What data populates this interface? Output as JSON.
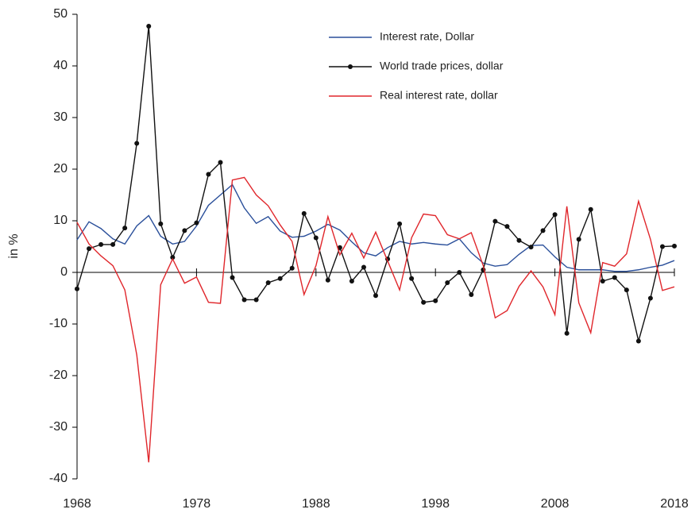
{
  "chart_data": {
    "type": "line",
    "ylabel": "in %",
    "x": [
      1968,
      1969,
      1970,
      1971,
      1972,
      1973,
      1974,
      1975,
      1976,
      1977,
      1978,
      1979,
      1980,
      1981,
      1982,
      1983,
      1984,
      1985,
      1986,
      1987,
      1988,
      1989,
      1990,
      1991,
      1992,
      1993,
      1994,
      1995,
      1996,
      1997,
      1998,
      1999,
      2000,
      2001,
      2002,
      2003,
      2004,
      2005,
      2006,
      2007,
      2008,
      2009,
      2010,
      2011,
      2012,
      2013,
      2014,
      2015,
      2016,
      2017,
      2018
    ],
    "series": [
      {
        "name": "Interest rate, Dollar",
        "color": "#2a4f9a",
        "marker": false,
        "values": [
          6.3,
          9.8,
          8.5,
          6.5,
          5.5,
          9,
          11,
          7,
          5.5,
          6,
          9,
          13,
          15,
          17,
          12.5,
          9.5,
          10.8,
          8,
          6.8,
          7,
          8,
          9.3,
          8.2,
          5.9,
          3.8,
          3.2,
          4.8,
          6,
          5.5,
          5.8,
          5.5,
          5.3,
          6.5,
          3.8,
          1.8,
          1.2,
          1.5,
          3.5,
          5.2,
          5.3,
          3,
          1,
          0.5,
          0.5,
          0.5,
          0.2,
          0.2,
          0.5,
          1,
          1.4,
          2.3
        ]
      },
      {
        "name": "World trade prices, dollar",
        "color": "#111111",
        "marker": true,
        "values": [
          -3.2,
          4.6,
          5.4,
          5.4,
          8.6,
          25,
          47.7,
          9.4,
          2.9,
          8.1,
          9.6,
          19,
          21.3,
          -1,
          -5.3,
          -5.3,
          -2,
          -1.2,
          0.8,
          11.4,
          6.7,
          -1.5,
          4.8,
          -1.7,
          1,
          -4.5,
          2.6,
          9.4,
          -1.2,
          -5.8,
          -5.5,
          -2,
          0,
          -4.3,
          0.5,
          9.9,
          8.9,
          6.2,
          4.9,
          8.1,
          11.2,
          -11.8,
          6.4,
          12.2,
          -1.7,
          -1,
          -3.4,
          -13.3,
          -5,
          5,
          5.1
        ]
      },
      {
        "name": "Real interest rate, dollar",
        "color": "#e0262b",
        "marker": false,
        "values": [
          9.7,
          5.5,
          3.2,
          1.3,
          -3.4,
          -16,
          -36.8,
          -2.4,
          2.6,
          -2.1,
          -0.9,
          -5.8,
          -6,
          17.9,
          18.4,
          15,
          12.9,
          9.2,
          6,
          -4.3,
          1.3,
          10.8,
          3.4,
          7.6,
          2.8,
          7.8,
          2.2,
          -3.4,
          6.7,
          11.3,
          11,
          7.3,
          6.5,
          7.7,
          1.3,
          -8.8,
          -7.4,
          -2.7,
          0.3,
          -2.8,
          -8.2,
          12.8,
          -5.9,
          -11.7,
          1.9,
          1.2,
          3.6,
          13.8,
          6.4,
          -3.5,
          -2.8
        ]
      }
    ],
    "xlim": [
      1968,
      2018
    ],
    "xticks": [
      1968,
      1978,
      1988,
      1998,
      2008,
      2018
    ],
    "ylim": [
      -40,
      50
    ],
    "yticks": [
      -40,
      -30,
      -20,
      -10,
      0,
      10,
      20,
      30,
      40,
      50
    ],
    "legend": "top-center",
    "grid": false
  }
}
